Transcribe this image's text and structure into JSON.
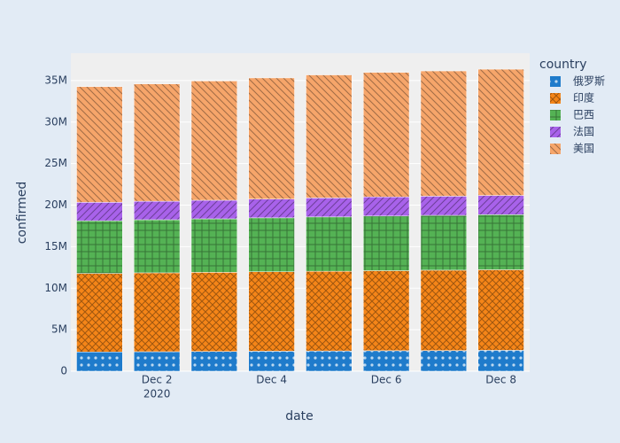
{
  "chart_data": {
    "type": "stacked-bar",
    "x_label": "date",
    "y_label": "confirmed",
    "legend_title": "country",
    "legend_position": "right",
    "x": [
      "2020-12-01",
      "2020-12-02",
      "2020-12-03",
      "2020-12-04",
      "2020-12-05",
      "2020-12-06",
      "2020-12-07",
      "2020-12-08"
    ],
    "xlim": [
      "2020-11-30T12:00:00",
      "2020-12-08T12:00:00"
    ],
    "xticks": [
      {
        "value": "2020-12-02",
        "label": [
          "Dec 2",
          "2020"
        ]
      },
      {
        "value": "2020-12-04",
        "label": [
          "Dec 4"
        ]
      },
      {
        "value": "2020-12-06",
        "label": [
          "Dec 6"
        ]
      },
      {
        "value": "2020-12-08",
        "label": [
          "Dec 8"
        ]
      }
    ],
    "ylim": [
      0,
      38300000
    ],
    "yticks": [
      0,
      {
        "value": 5000000,
        "label": "5M"
      },
      {
        "value": 10000000,
        "label": "10M"
      },
      {
        "value": 15000000,
        "label": "15M"
      },
      {
        "value": 20000000,
        "label": "20M"
      },
      {
        "value": 25000000,
        "label": "25M"
      },
      {
        "value": 30000000,
        "label": "30M"
      },
      {
        "value": 35000000,
        "label": "35M"
      }
    ],
    "grid": true,
    "series": [
      {
        "name": "俄罗斯",
        "color": "#1f7bcb",
        "pattern": ".",
        "values": [
          2320000,
          2350000,
          2380000,
          2410000,
          2440000,
          2470000,
          2490000,
          2520000
        ]
      },
      {
        "name": "印度",
        "color": "#f58518",
        "pattern": "x",
        "values": [
          9460000,
          9500000,
          9530000,
          9570000,
          9600000,
          9640000,
          9680000,
          9700000
        ]
      },
      {
        "name": "巴西",
        "color": "#54b254",
        "pattern": "+",
        "values": [
          6340000,
          6390000,
          6440000,
          6490000,
          6540000,
          6580000,
          6600000,
          6630000
        ]
      },
      {
        "name": "法国",
        "color": "#a862ea",
        "pattern": "/",
        "values": [
          2220000,
          2230000,
          2240000,
          2260000,
          2290000,
          2300000,
          2310000,
          2320000
        ]
      },
      {
        "name": "美国",
        "color": "#f6a56a",
        "pattern": "\\",
        "values": [
          13930000,
          14130000,
          14360000,
          14590000,
          14810000,
          15000000,
          15080000,
          15200000
        ]
      }
    ]
  }
}
